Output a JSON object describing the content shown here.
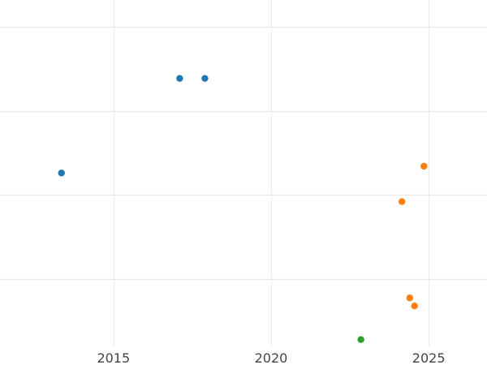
{
  "chart_data": {
    "type": "scatter",
    "title": "",
    "xlabel": "",
    "ylabel": "",
    "xlim": [
      2011.4,
      2026.85
    ],
    "ylim": [
      0,
      100
    ],
    "x_ticks": [
      2015,
      2020,
      2025
    ],
    "x_tick_labels": [
      "2015",
      "2020",
      "2025"
    ],
    "y_gridlines": [
      20,
      45,
      70,
      95
    ],
    "grid": true,
    "legend": "none",
    "series": [
      {
        "color": "#1f77b4",
        "points": [
          {
            "x": 2013.35,
            "y": 51.5
          },
          {
            "x": 2017.1,
            "y": 79.6
          },
          {
            "x": 2017.9,
            "y": 79.6
          }
        ]
      },
      {
        "color": "#ff7f0e",
        "points": [
          {
            "x": 2024.85,
            "y": 53.5
          },
          {
            "x": 2024.15,
            "y": 43.0
          },
          {
            "x": 2024.4,
            "y": 14.4
          },
          {
            "x": 2024.55,
            "y": 12.0
          }
        ]
      },
      {
        "color": "#2ca02c",
        "points": [
          {
            "x": 2022.85,
            "y": 2.0
          }
        ]
      }
    ]
  }
}
